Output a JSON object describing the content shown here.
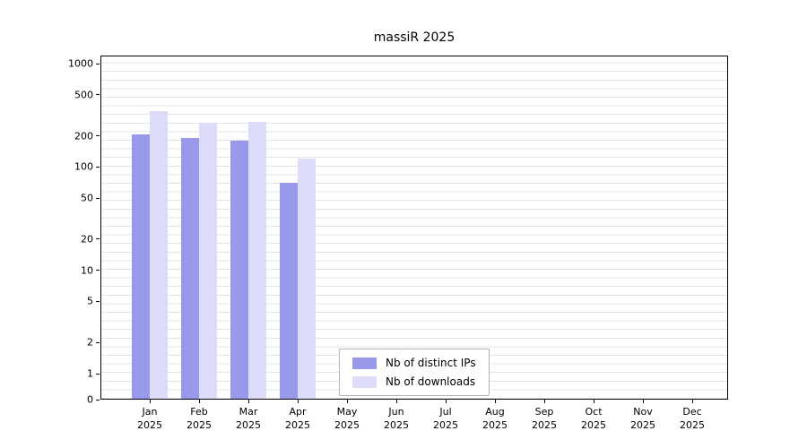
{
  "chart_data": {
    "type": "bar",
    "title": "massiR 2025",
    "xlabel": "",
    "ylabel": "",
    "yscale": "log-like",
    "grid": true,
    "legend_position": "bottom-center-inside",
    "yticks": [
      1000,
      500,
      200,
      100,
      50,
      20,
      10,
      5,
      2,
      1,
      0
    ],
    "ylim": [
      0,
      1200
    ],
    "categories": [
      "Jan 2025",
      "Feb 2025",
      "Mar 2025",
      "Apr 2025",
      "May 2025",
      "Jun 2025",
      "Jul 2025",
      "Aug 2025",
      "Sep 2025",
      "Oct 2025",
      "Nov 2025",
      "Dec 2025"
    ],
    "series": [
      {
        "name": "Nb of distinct IPs",
        "color": "#9999ec",
        "values": [
          205,
          190,
          180,
          70,
          0,
          0,
          0,
          0,
          0,
          0,
          0,
          0
        ]
      },
      {
        "name": "Nb of downloads",
        "color": "#dcdcf8",
        "values": [
          350,
          270,
          275,
          120,
          0,
          0,
          0,
          0,
          0,
          0,
          0,
          0
        ]
      }
    ]
  }
}
